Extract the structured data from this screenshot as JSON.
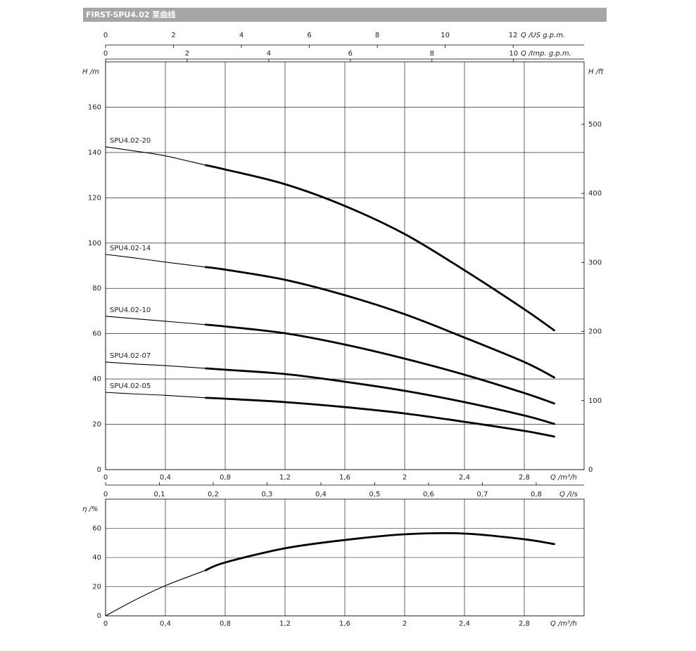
{
  "header": {
    "title": "FIRST-SPU4.02  泵曲线"
  },
  "chart_data": [
    {
      "type": "line",
      "xlabel": "Q /m³/h",
      "ylabel": "H /m",
      "y2label": "H /ft",
      "xlim": [
        0,
        3.2
      ],
      "xticks": [
        0,
        {
          "value": 0.4,
          "label": "0,4"
        },
        {
          "value": 0.8,
          "label": "0,8"
        },
        {
          "value": 1.2,
          "label": "1,2"
        },
        {
          "value": 1.6,
          "label": "1,6"
        },
        2,
        {
          "value": 2.4,
          "label": "2,4"
        },
        {
          "value": 2.8,
          "label": "2,8"
        }
      ],
      "ylim": [
        0,
        180
      ],
      "yticks": [
        0,
        20,
        40,
        60,
        80,
        100,
        120,
        140,
        160
      ],
      "y2lim": [
        0,
        590.5
      ],
      "y2ticks": [
        0,
        100,
        200,
        300,
        400,
        500
      ],
      "grid": true,
      "bold_from": 0.67,
      "secondary_x_axes": [
        {
          "label": "Q /US g.p.m.",
          "xlim": [
            0,
            14.09
          ],
          "xticks": [
            0,
            2,
            4,
            6,
            8,
            10,
            12
          ]
        },
        {
          "label": "Q /Imp. g.p.m.",
          "xlim": [
            0,
            11.73
          ],
          "xticks": [
            0,
            2,
            4,
            6,
            8,
            10
          ]
        },
        {
          "label": "Q /l/s",
          "xlim": [
            0,
            0.889
          ],
          "xticks": [
            0,
            {
              "value": 0.1,
              "label": "0,1"
            },
            {
              "value": 0.2,
              "label": "0,2"
            },
            {
              "value": 0.3,
              "label": "0,3"
            },
            {
              "value": 0.4,
              "label": "0,4"
            },
            {
              "value": 0.5,
              "label": "0,5"
            },
            {
              "value": 0.6,
              "label": "0,6"
            },
            {
              "value": 0.7,
              "label": "0,7"
            },
            {
              "value": 0.8,
              "label": "0,8"
            }
          ]
        }
      ],
      "x": [
        0,
        0.2,
        0.4,
        0.67,
        0.8,
        1.2,
        1.6,
        2.0,
        2.4,
        2.8,
        3.0
      ],
      "series": [
        {
          "name": "SPU4.02-20",
          "color": "#000000",
          "values": [
            142.5,
            140.6,
            138.5,
            134.4,
            132.5,
            126,
            116.4,
            104,
            88,
            70.8,
            61.5
          ]
        },
        {
          "name": "SPU4.02-14",
          "color": "#000000",
          "values": [
            95,
            93.4,
            91.6,
            89.4,
            88.3,
            83.8,
            77,
            68.6,
            58.3,
            47.5,
            40.7
          ]
        },
        {
          "name": "SPU4.02-10",
          "color": "#000000",
          "values": [
            67.7,
            66.6,
            65.5,
            64,
            63.2,
            60.2,
            55.2,
            49,
            41.9,
            33.8,
            29.2
          ]
        },
        {
          "name": "SPU4.02-07",
          "color": "#000000",
          "values": [
            47.5,
            46.6,
            45.9,
            44.7,
            44.1,
            42.2,
            38.8,
            34.8,
            29.8,
            23.9,
            20.2
          ]
        },
        {
          "name": "SPU4.02-05",
          "color": "#000000",
          "values": [
            34.1,
            33.4,
            32.8,
            31.7,
            31.3,
            29.8,
            27.6,
            24.8,
            21.1,
            17.1,
            14.6
          ]
        }
      ]
    },
    {
      "type": "line",
      "xlabel": "Q /m³/h",
      "ylabel": "η /%",
      "xlim": [
        0,
        3.2
      ],
      "xticks": [
        0,
        {
          "value": 0.4,
          "label": "0,4"
        },
        {
          "value": 0.8,
          "label": "0,8"
        },
        {
          "value": 1.2,
          "label": "1,2"
        },
        {
          "value": 1.6,
          "label": "1,6"
        },
        2,
        {
          "value": 2.4,
          "label": "2,4"
        },
        {
          "value": 2.8,
          "label": "2,8"
        }
      ],
      "ylim": [
        0,
        80
      ],
      "yticks": [
        0,
        20,
        40,
        60
      ],
      "grid": true,
      "bold_from": 0.67,
      "x": [
        0,
        0.2,
        0.4,
        0.67,
        0.8,
        1.2,
        1.6,
        2.0,
        2.4,
        2.8,
        3.0
      ],
      "series": [
        {
          "color": "#000000",
          "values": [
            0,
            11,
            20.7,
            31.3,
            36.6,
            46.3,
            52,
            55.9,
            56.4,
            52.5,
            49.2
          ]
        }
      ]
    }
  ]
}
